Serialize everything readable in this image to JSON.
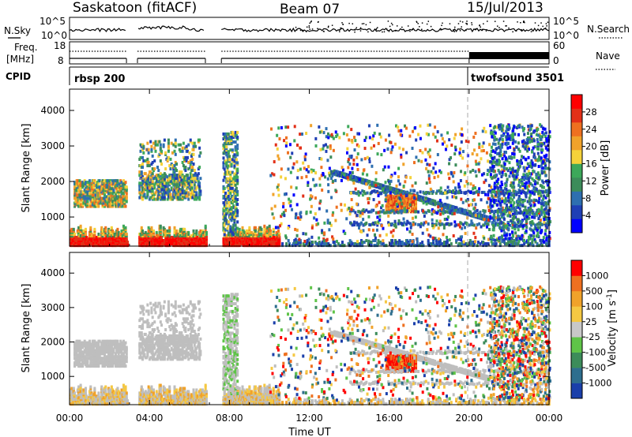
{
  "header": {
    "station": "Saskatoon (fitACF)",
    "beam": "Beam 07",
    "date": "15/Jul/2013"
  },
  "labels": {
    "nsky": "N.Sky",
    "nsearch": "N.Search",
    "freq_line1": "Freq.",
    "freq_line2": "[MHz]",
    "nave": "Nave",
    "cpid": "CPID",
    "cpid1": "rbsp 200",
    "cpid2": "twofsound 3501"
  },
  "noise_axis": {
    "left_ticks": [
      "10^5",
      "10^0"
    ],
    "right_ticks": [
      "10^5",
      "10^0"
    ]
  },
  "freq_axis": {
    "left_ticks": [
      "18",
      "8"
    ],
    "right_ticks": [
      "60",
      "0"
    ]
  },
  "chart_data": [
    {
      "type": "heatmap",
      "panel": "power",
      "ylabel": "Slant Range [km]",
      "xlabel": "",
      "ylim": [
        180,
        4600
      ],
      "yticks": [
        1000,
        2000,
        3000,
        4000
      ],
      "xticks": [
        "00:00",
        "04:00",
        "08:00",
        "12:00",
        "16:00",
        "20:00",
        "00:00"
      ],
      "colorbar": {
        "label": "Power [dB]",
        "ticks": [
          "28",
          "24",
          "20",
          "16",
          "12",
          "8",
          "4"
        ],
        "colors": [
          "#0000ff",
          "#1f3fb5",
          "#2e6fb0",
          "#3c8c5a",
          "#3da85a",
          "#f5d23a",
          "#f0a22a",
          "#ee7020",
          "#e23018",
          "#ff0000"
        ]
      },
      "data_gaps_hours": [
        [
          2.85,
          3.4
        ],
        [
          6.8,
          7.6
        ]
      ],
      "pattern_description_omitted": true
    },
    {
      "type": "heatmap",
      "panel": "velocity",
      "ylabel": "Slant Range [km]",
      "xlabel": "Time UT",
      "ylim": [
        180,
        4600
      ],
      "yticks": [
        1000,
        2000,
        3000,
        4000
      ],
      "xticks": [
        "00:00",
        "04:00",
        "08:00",
        "12:00",
        "16:00",
        "20:00",
        "00:00"
      ],
      "colorbar": {
        "label": "Velocity [m s^-1]",
        "ticks": [
          "1000",
          "500",
          "100",
          "25",
          "-25",
          "-100",
          "-500",
          "-1000"
        ],
        "colors": [
          "#1a3faa",
          "#2e6e8e",
          "#3c8c5a",
          "#5fc448",
          "#c8c8c8",
          "#f5c842",
          "#f0a22a",
          "#ee7020",
          "#ff0000"
        ]
      },
      "data_gaps_hours": [
        [
          2.85,
          3.4
        ],
        [
          6.8,
          7.6
        ]
      ]
    }
  ],
  "colors": {
    "ground_scatter": "#bebebe",
    "mode_change_line": "#b0b0b0"
  }
}
